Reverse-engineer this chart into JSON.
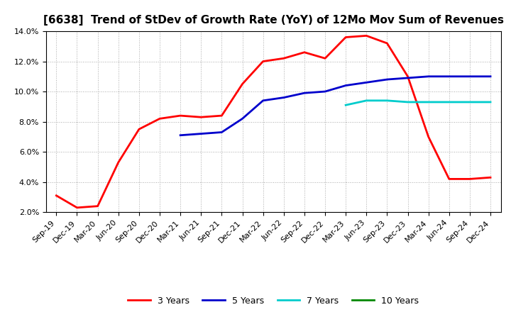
{
  "title": "[6638]  Trend of StDev of Growth Rate (YoY) of 12Mo Mov Sum of Revenues",
  "ylim": [
    0.02,
    0.14
  ],
  "yticks": [
    0.02,
    0.04,
    0.06,
    0.08,
    0.1,
    0.12,
    0.14
  ],
  "background_color": "#ffffff",
  "grid_color": "#aaaaaa",
  "series": {
    "3 Years": {
      "color": "#ff0000",
      "x": [
        "Sep-19",
        "Dec-19",
        "Mar-20",
        "Jun-20",
        "Sep-20",
        "Dec-20",
        "Mar-21",
        "Jun-21",
        "Sep-21",
        "Dec-21",
        "Mar-22",
        "Jun-22",
        "Sep-22",
        "Dec-22",
        "Mar-23",
        "Jun-23",
        "Sep-23",
        "Dec-23",
        "Mar-24",
        "Jun-24",
        "Sep-24",
        "Dec-24"
      ],
      "y": [
        0.031,
        0.023,
        0.024,
        0.053,
        0.075,
        0.082,
        0.084,
        0.083,
        0.084,
        0.105,
        0.12,
        0.122,
        0.126,
        0.122,
        0.136,
        0.137,
        0.132,
        0.11,
        0.07,
        0.042,
        0.042,
        0.043
      ]
    },
    "5 Years": {
      "color": "#0000cc",
      "x": [
        "Mar-21",
        "Jun-21",
        "Sep-21",
        "Dec-21",
        "Mar-22",
        "Jun-22",
        "Sep-22",
        "Dec-22",
        "Mar-23",
        "Jun-23",
        "Sep-23",
        "Dec-23",
        "Mar-24",
        "Jun-24",
        "Sep-24",
        "Dec-24"
      ],
      "y": [
        0.071,
        0.072,
        0.073,
        0.082,
        0.094,
        0.096,
        0.099,
        0.1,
        0.104,
        0.106,
        0.108,
        0.109,
        0.11,
        0.11,
        0.11,
        0.11
      ]
    },
    "7 Years": {
      "color": "#00cccc",
      "x": [
        "Mar-23",
        "Jun-23",
        "Sep-23",
        "Dec-23",
        "Mar-24",
        "Jun-24",
        "Sep-24",
        "Dec-24"
      ],
      "y": [
        0.091,
        0.094,
        0.094,
        0.093,
        0.093,
        0.093,
        0.093,
        0.093
      ]
    },
    "10 Years": {
      "color": "#008800",
      "x": [],
      "y": []
    }
  },
  "x_labels": [
    "Sep-19",
    "Dec-19",
    "Mar-20",
    "Jun-20",
    "Sep-20",
    "Dec-20",
    "Mar-21",
    "Jun-21",
    "Sep-21",
    "Dec-21",
    "Mar-22",
    "Jun-22",
    "Sep-22",
    "Dec-22",
    "Mar-23",
    "Jun-23",
    "Sep-23",
    "Dec-23",
    "Mar-24",
    "Jun-24",
    "Sep-24",
    "Dec-24"
  ],
  "title_fontsize": 11,
  "tick_fontsize": 8,
  "legend_fontsize": 9
}
